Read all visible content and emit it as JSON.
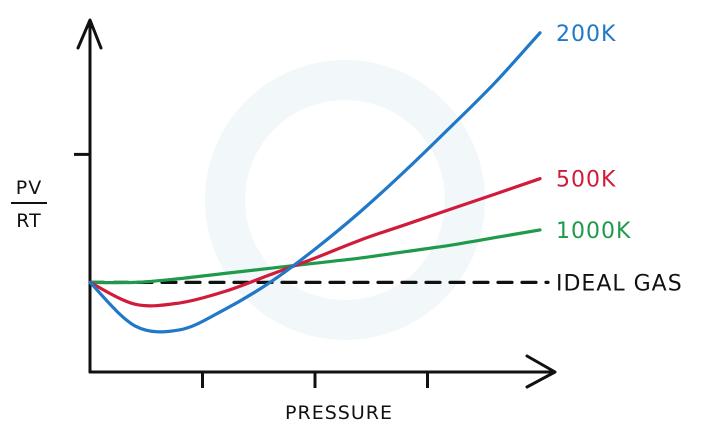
{
  "chart_data": {
    "type": "line",
    "xlabel": "PRESSURE",
    "ylabel_numerator": "PV",
    "ylabel_denominator": "RT",
    "x": [
      0,
      0.5,
      1,
      1.5,
      2,
      2.5,
      3,
      3.5,
      4,
      4.5,
      5
    ],
    "series": [
      {
        "name": "200K",
        "color": "#1f78c8",
        "values": [
          1.0,
          0.66,
          0.63,
          0.79,
          1.0,
          1.26,
          1.55,
          1.87,
          2.21,
          2.56,
          2.95
        ]
      },
      {
        "name": "500K",
        "color": "#d01c3a",
        "values": [
          1.0,
          0.83,
          0.84,
          0.93,
          1.06,
          1.19,
          1.33,
          1.45,
          1.57,
          1.69,
          1.81
        ]
      },
      {
        "name": "1000K",
        "color": "#1f9a4a",
        "values": [
          1.0,
          1.0,
          1.03,
          1.07,
          1.11,
          1.15,
          1.19,
          1.24,
          1.29,
          1.35,
          1.41
        ]
      },
      {
        "name": "IDEAL GAS",
        "color": "#111111",
        "dashed": true,
        "values": [
          1.0,
          1.0,
          1.0,
          1.0,
          1.0,
          1.0,
          1.0,
          1.0,
          1.0,
          1.0,
          1.0
        ]
      }
    ],
    "xlim": [
      0,
      5
    ],
    "ylim": [
      0.3,
      3.05
    ],
    "x_ticks": [
      1.25,
      2.5,
      3.75
    ],
    "y_ticks": [
      2.0
    ],
    "legend": "right of line ends"
  }
}
